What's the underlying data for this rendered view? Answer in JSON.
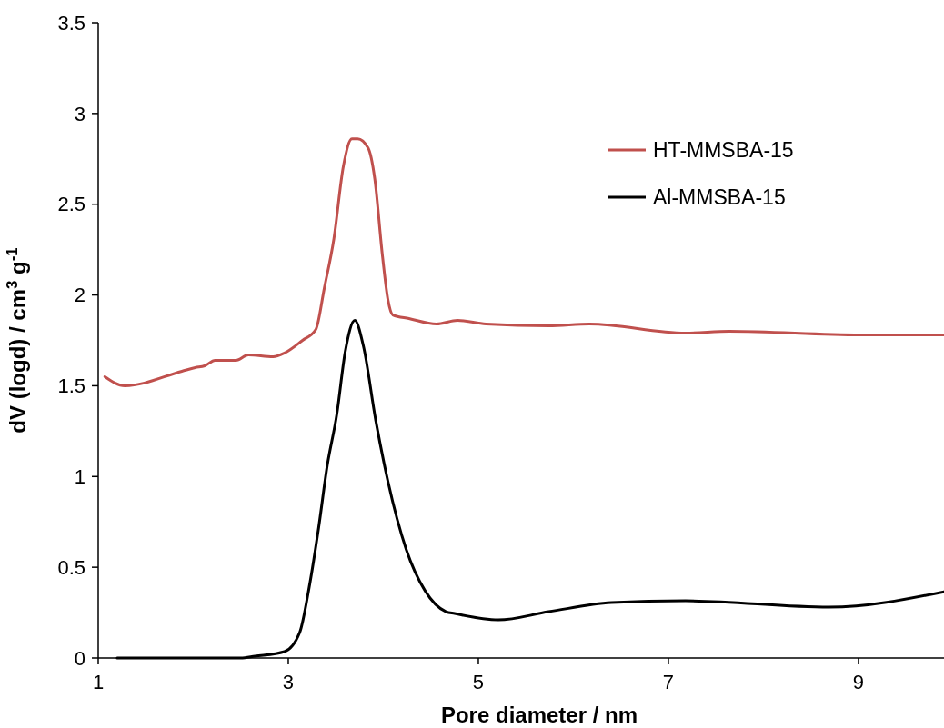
{
  "chart_data": {
    "type": "line",
    "xlabel": "Pore diameter / nm",
    "ylabel": "dV (logd) / cm$^{3}$ g$^{-1}$",
    "xlim": [
      1,
      9.9
    ],
    "ylim": [
      0,
      3.5
    ],
    "xticks": [
      1,
      3,
      5,
      7,
      9
    ],
    "yticks": [
      0,
      0.5,
      1,
      1.5,
      2,
      2.5,
      3,
      3.5
    ],
    "grid": false,
    "legend": "top right",
    "marker": "none",
    "line_style": "solid",
    "series": [
      {
        "name": "HT-MMSBA-15",
        "color": "#c0504d",
        "x": [
          1.07,
          1.28,
          1.88,
          2.02,
          2.12,
          2.23,
          2.45,
          2.58,
          2.84,
          2.96,
          3.15,
          3.29,
          3.38,
          3.48,
          3.58,
          3.67,
          3.73,
          3.84,
          3.91,
          3.99,
          4.05,
          4.1,
          4.27,
          4.56,
          4.78,
          5.08,
          5.74,
          6.17,
          7.18,
          7.64,
          9.02,
          9.9
        ],
        "values": [
          1.55,
          1.5,
          1.58,
          1.6,
          1.61,
          1.64,
          1.64,
          1.67,
          1.66,
          1.68,
          1.75,
          1.81,
          2.04,
          2.31,
          2.71,
          2.86,
          2.86,
          2.81,
          2.64,
          2.22,
          1.97,
          1.89,
          1.87,
          1.84,
          1.86,
          1.84,
          1.83,
          1.84,
          1.79,
          1.8,
          1.78,
          1.78
        ]
      },
      {
        "name": "Al-MMSBA-15",
        "color": "#000000",
        "x": [
          1.2,
          2.0,
          2.3,
          2.5,
          2.65,
          2.96,
          3.12,
          3.22,
          3.32,
          3.41,
          3.51,
          3.6,
          3.7,
          3.79,
          3.92,
          4.05,
          4.24,
          4.44,
          4.66,
          4.75,
          5.21,
          5.74,
          6.4,
          7.18,
          8.69,
          9.9
        ],
        "values": [
          0,
          0,
          0,
          0,
          0.01,
          0.035,
          0.14,
          0.39,
          0.72,
          1.06,
          1.34,
          1.69,
          1.86,
          1.72,
          1.31,
          0.97,
          0.6,
          0.37,
          0.255,
          0.245,
          0.21,
          0.255,
          0.305,
          0.315,
          0.28,
          0.365
        ]
      }
    ]
  }
}
